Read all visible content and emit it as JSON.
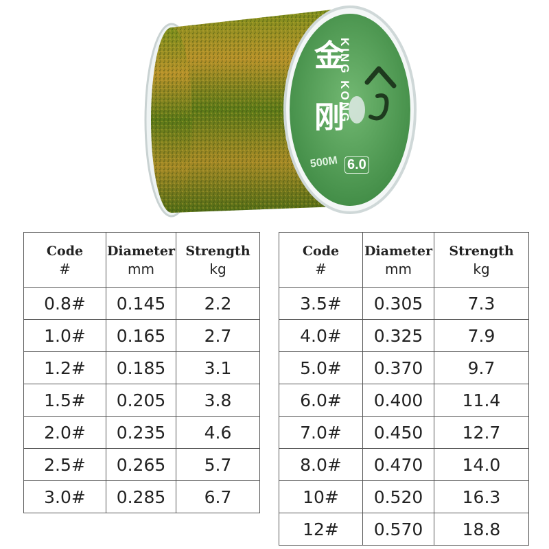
{
  "product": {
    "label_chinese_1": "金",
    "label_chinese_2": "刚",
    "label_brand": "KING KONG",
    "label_symbol": "へら",
    "label_length": "500M",
    "label_size": "6.0",
    "colors": {
      "spool_green": "#5b7a18",
      "spool_gold": "#b8922a",
      "label_green": "#4e9a4e"
    }
  },
  "table_header": {
    "code": "Code",
    "code_unit": "#",
    "diameter": "Diameter",
    "diameter_unit": "mm",
    "strength": "Strength",
    "strength_unit": "kg"
  },
  "rows_left": [
    {
      "code": "0.8#",
      "diameter": "0.145",
      "strength": "2.2"
    },
    {
      "code": "1.0#",
      "diameter": "0.165",
      "strength": "2.7"
    },
    {
      "code": "1.2#",
      "diameter": "0.185",
      "strength": "3.1"
    },
    {
      "code": "1.5#",
      "diameter": "0.205",
      "strength": "3.8"
    },
    {
      "code": "2.0#",
      "diameter": "0.235",
      "strength": "4.6"
    },
    {
      "code": "2.5#",
      "diameter": "0.265",
      "strength": "5.7"
    },
    {
      "code": "3.0#",
      "diameter": "0.285",
      "strength": "6.7"
    }
  ],
  "rows_right": [
    {
      "code": "3.5#",
      "diameter": "0.305",
      "strength": "7.3"
    },
    {
      "code": "4.0#",
      "diameter": "0.325",
      "strength": "7.9"
    },
    {
      "code": "5.0#",
      "diameter": "0.370",
      "strength": "9.7"
    },
    {
      "code": "6.0#",
      "diameter": "0.400",
      "strength": "11.4"
    },
    {
      "code": "7.0#",
      "diameter": "0.450",
      "strength": "12.7"
    },
    {
      "code": "8.0#",
      "diameter": "0.470",
      "strength": "14.0"
    },
    {
      "code": "10#",
      "diameter": "0.520",
      "strength": "16.3"
    },
    {
      "code": "12#",
      "diameter": "0.570",
      "strength": "18.8"
    }
  ]
}
